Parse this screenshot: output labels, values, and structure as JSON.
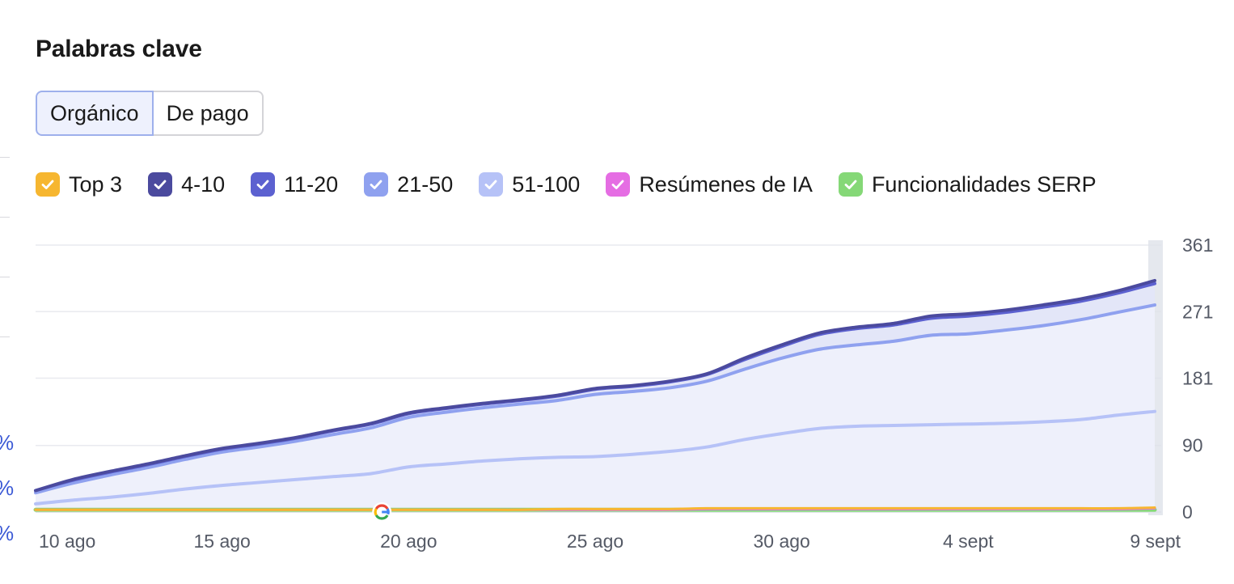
{
  "title": "Palabras clave",
  "tabs": [
    {
      "label": "Orgánico",
      "active": true
    },
    {
      "label": "De pago",
      "active": false
    }
  ],
  "left_edge_glyphs": [
    "%",
    "%",
    "%"
  ],
  "legend": [
    {
      "label": "Top 3",
      "color": "#f6b630",
      "checked": true
    },
    {
      "label": "4-10",
      "color": "#4b4a9e",
      "checked": true
    },
    {
      "label": "11-20",
      "color": "#5c61d0",
      "checked": true
    },
    {
      "label": "21-50",
      "color": "#8fa1ef",
      "checked": true
    },
    {
      "label": "51-100",
      "color": "#b6c2f7",
      "checked": true
    },
    {
      "label": "Resúmenes de IA",
      "color": "#e56de3",
      "checked": true
    },
    {
      "label": "Funcionalidades SERP",
      "color": "#85d877",
      "checked": true
    }
  ],
  "chart_data": {
    "type": "area",
    "x": [
      "10 ago",
      "11 ago",
      "12 ago",
      "13 ago",
      "14 ago",
      "15 ago",
      "16 ago",
      "17 ago",
      "18 ago",
      "19 ago",
      "20 ago",
      "21 ago",
      "22 ago",
      "23 ago",
      "24 ago",
      "25 ago",
      "26 ago",
      "27 ago",
      "28 ago",
      "29 ago",
      "30 ago",
      "31 ago",
      "1 sept",
      "2 sept",
      "3 sept",
      "4 sept",
      "5 sept",
      "6 sept",
      "7 sept",
      "8 sept",
      "9 sept"
    ],
    "xticks": [
      "10 ago",
      "15 ago",
      "20 ago",
      "25 ago",
      "30 ago",
      "4 sept",
      "9 sept"
    ],
    "yticks": [
      0,
      90,
      181,
      271,
      361
    ],
    "ylim": [
      0,
      361
    ],
    "grid": true,
    "stacked": true,
    "annotation": {
      "x": "19 ago",
      "icon": "google-update-icon"
    },
    "series": [
      {
        "name": "Funcionalidades SERP",
        "color": "#85d877",
        "values": [
          3,
          3,
          3,
          3,
          3,
          3,
          3,
          3,
          3,
          3,
          3,
          3,
          3,
          3,
          3,
          3,
          3,
          3,
          3,
          3,
          3,
          3,
          3,
          3,
          3,
          3,
          3,
          3,
          3,
          3,
          3
        ]
      },
      {
        "name": "Resúmenes de IA",
        "color": "#e56de3",
        "values": [
          0,
          0,
          0,
          0,
          0,
          0,
          0,
          0,
          0,
          0,
          0,
          0,
          0,
          0,
          0,
          0,
          0,
          0,
          1,
          1,
          1,
          1,
          1,
          1,
          1,
          1,
          1,
          1,
          1,
          1,
          2
        ]
      },
      {
        "name": "Top 3",
        "color": "#f6b630",
        "values": [
          0,
          0,
          0,
          0,
          0,
          0,
          0,
          0,
          0,
          0,
          0,
          0,
          0,
          0,
          1,
          1,
          1,
          1,
          1,
          1,
          1,
          1,
          1,
          1,
          1,
          1,
          1,
          1,
          1,
          1,
          1
        ]
      },
      {
        "name": "51-100",
        "color": "#b6c2f7",
        "values": [
          8,
          13,
          17,
          22,
          28,
          33,
          37,
          41,
          45,
          49,
          58,
          62,
          66,
          69,
          70,
          71,
          74,
          78,
          83,
          93,
          101,
          108,
          111,
          112,
          113,
          114,
          115,
          117,
          120,
          126,
          130
        ]
      },
      {
        "name": "21-50",
        "color": "#8fa1ef",
        "values": [
          15,
          23,
          30,
          35,
          40,
          45,
          48,
          52,
          57,
          62,
          67,
          70,
          72,
          74,
          77,
          84,
          85,
          86,
          89,
          95,
          102,
          107,
          110,
          114,
          121,
          122,
          126,
          130,
          135,
          139,
          144
        ]
      },
      {
        "name": "11-20",
        "color": "#5c61d0",
        "values": [
          3,
          4,
          4,
          4,
          4,
          4,
          4,
          4,
          5,
          5,
          5,
          5,
          5,
          5,
          6,
          7,
          7,
          8,
          9,
          13,
          16,
          20,
          22,
          22,
          23,
          24,
          24,
          25,
          25,
          26,
          29
        ]
      },
      {
        "name": "4-10",
        "color": "#4b4a9e",
        "values": [
          0,
          1,
          1,
          1,
          1,
          1,
          1,
          1,
          1,
          1,
          1,
          1,
          1,
          1,
          1,
          1,
          1,
          1,
          1,
          2,
          2,
          2,
          2,
          2,
          3,
          3,
          3,
          3,
          3,
          3,
          4
        ]
      }
    ]
  }
}
